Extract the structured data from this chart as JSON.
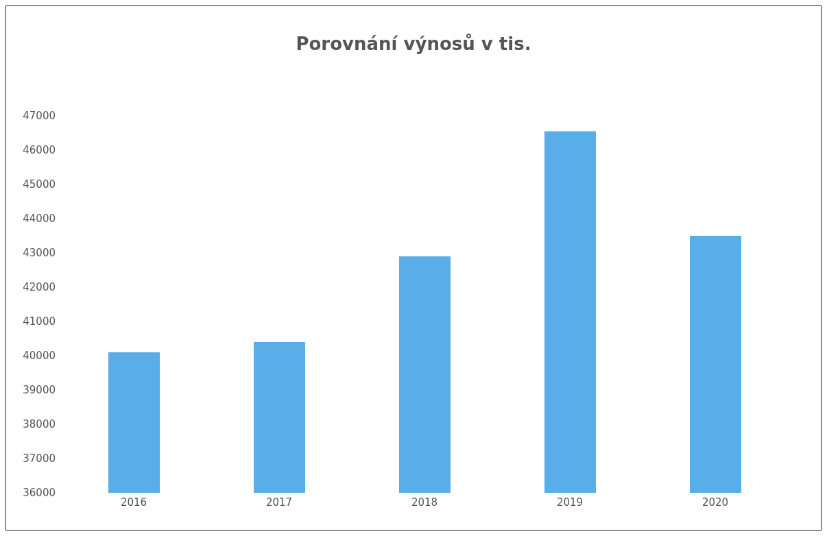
{
  "chart_data": {
    "type": "bar",
    "title": "Porovnání výnosů v tis.",
    "categories": [
      "2016",
      "2017",
      "2018",
      "2019",
      "2020"
    ],
    "values": [
      40100,
      40400,
      42900,
      46550,
      43500
    ],
    "color": "#5aaee8",
    "ylim": [
      36000,
      47000
    ],
    "yticks": [
      36000,
      37000,
      38000,
      39000,
      40000,
      41000,
      42000,
      43000,
      44000,
      45000,
      46000,
      47000
    ],
    "grid": false
  }
}
